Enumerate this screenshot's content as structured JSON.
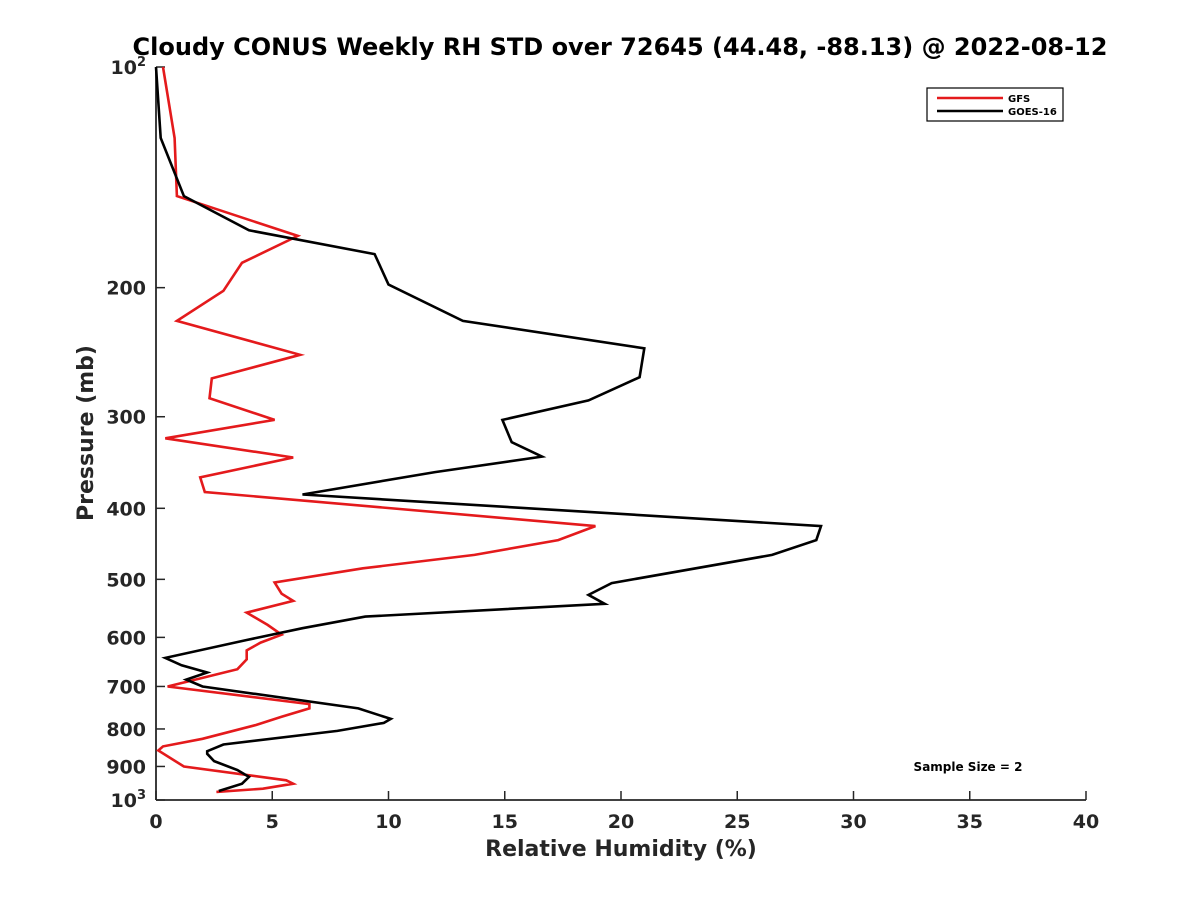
{
  "chart_data": {
    "type": "line",
    "title": "Cloudy CONUS Weekly RH STD over 72645 (44.48, -88.13) @ 2022-08-12",
    "xlabel": "Relative Humidity (%)",
    "ylabel": "Pressure (mb)",
    "xlim": [
      0,
      40
    ],
    "ylim": [
      100,
      1000
    ],
    "y_scale": "log",
    "y_reversed": true,
    "x_ticks": [
      0,
      5,
      10,
      15,
      20,
      25,
      30,
      35,
      40
    ],
    "y_ticks": [
      {
        "value": 100,
        "base": "10",
        "exp": "2"
      },
      {
        "value": 200,
        "label": "200"
      },
      {
        "value": 300,
        "label": "300"
      },
      {
        "value": 400,
        "label": "400"
      },
      {
        "value": 500,
        "label": "500"
      },
      {
        "value": 600,
        "label": "600"
      },
      {
        "value": 700,
        "label": "700"
      },
      {
        "value": 800,
        "label": "800"
      },
      {
        "value": 900,
        "label": "900"
      },
      {
        "value": 1000,
        "base": "10",
        "exp": "3"
      }
    ],
    "grid": false,
    "legend_position": "top-right",
    "series": [
      {
        "name": "GFS",
        "color": "#e41a1c",
        "points": [
          [
            0.3,
            100
          ],
          [
            0.8,
            125
          ],
          [
            0.9,
            150
          ],
          [
            6.1,
            170
          ],
          [
            3.7,
            185
          ],
          [
            2.9,
            202
          ],
          [
            0.9,
            222
          ],
          [
            6.2,
            247
          ],
          [
            2.4,
            266
          ],
          [
            2.3,
            283
          ],
          [
            5.1,
            303
          ],
          [
            0.4,
            321
          ],
          [
            5.9,
            341
          ],
          [
            1.9,
            363
          ],
          [
            2.1,
            380
          ],
          [
            18.9,
            423
          ],
          [
            17.3,
            442
          ],
          [
            13.7,
            463
          ],
          [
            8.9,
            483
          ],
          [
            5.1,
            505
          ],
          [
            5.4,
            523
          ],
          [
            5.9,
            535
          ],
          [
            3.9,
            555
          ],
          [
            4.8,
            577
          ],
          [
            5.4,
            595
          ],
          [
            4.5,
            610
          ],
          [
            3.9,
            625
          ],
          [
            3.9,
            643
          ],
          [
            3.5,
            663
          ],
          [
            0.5,
            700
          ],
          [
            6.6,
            740
          ],
          [
            6.6,
            750
          ],
          [
            5.4,
            770
          ],
          [
            4.3,
            790
          ],
          [
            2.0,
            825
          ],
          [
            0.3,
            845
          ],
          [
            0.1,
            856
          ],
          [
            1.2,
            900
          ],
          [
            5.6,
            940
          ],
          [
            5.9,
            950
          ],
          [
            4.6,
            965
          ],
          [
            2.6,
            975
          ]
        ]
      },
      {
        "name": "GOES-16",
        "color": "#000000",
        "points": [
          [
            0.0,
            100
          ],
          [
            0.2,
            125
          ],
          [
            1.2,
            150
          ],
          [
            4.0,
            167
          ],
          [
            9.4,
            180
          ],
          [
            10.0,
            198
          ],
          [
            13.2,
            222
          ],
          [
            21.0,
            242
          ],
          [
            20.8,
            265
          ],
          [
            18.6,
            285
          ],
          [
            14.9,
            303
          ],
          [
            15.3,
            325
          ],
          [
            16.6,
            340
          ],
          [
            12.0,
            357
          ],
          [
            6.3,
            383
          ],
          [
            28.6,
            423
          ],
          [
            28.4,
            442
          ],
          [
            26.5,
            463
          ],
          [
            19.6,
            506
          ],
          [
            18.6,
            525
          ],
          [
            19.3,
            540
          ],
          [
            9.0,
            562
          ],
          [
            6.3,
            583
          ],
          [
            3.9,
            605
          ],
          [
            0.4,
            640
          ],
          [
            1.1,
            655
          ],
          [
            2.2,
            670
          ],
          [
            1.3,
            685
          ],
          [
            2.0,
            700
          ],
          [
            8.7,
            750
          ],
          [
            10.1,
            775
          ],
          [
            9.8,
            785
          ],
          [
            7.8,
            805
          ],
          [
            2.9,
            840
          ],
          [
            2.2,
            858
          ],
          [
            2.2,
            865
          ],
          [
            2.5,
            885
          ],
          [
            3.5,
            910
          ],
          [
            4.0,
            930
          ],
          [
            3.7,
            950
          ],
          [
            2.7,
            972
          ]
        ]
      }
    ],
    "annotations": [
      "Sample Size = 2"
    ]
  }
}
